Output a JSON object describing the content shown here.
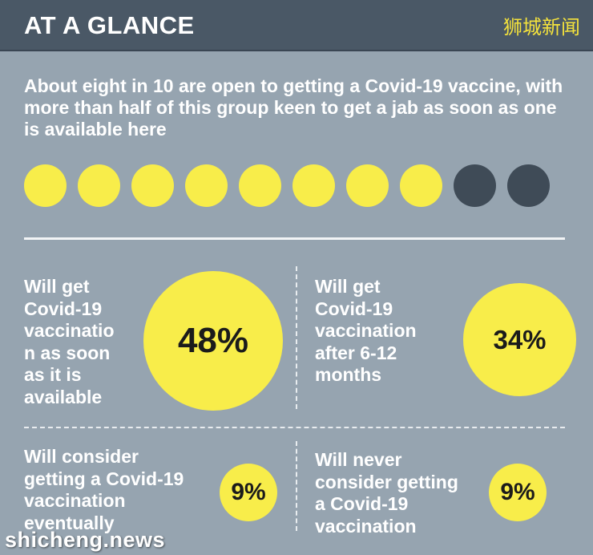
{
  "header": {
    "title": "AT A GLANCE",
    "brand": "狮城新闻"
  },
  "intro": "About eight in 10 are open to getting a Covid-19 vaccine, with more than half of this group keen to get a jab as soon as one is available here",
  "dots": {
    "total": 10,
    "filled": 8,
    "filled_color": "#f8ed4a",
    "empty_color": "#3f4b57"
  },
  "stats": [
    {
      "label_lines": [
        "Will get",
        "Covid-19",
        "vaccinatio",
        "n as soon",
        "as it is",
        "available"
      ],
      "value": "48%"
    },
    {
      "label_lines": [
        "Will get",
        "Covid-19",
        "vaccination",
        "after 6-12",
        "months"
      ],
      "value": "34%"
    },
    {
      "label_lines": [
        "Will consider",
        "getting a Covid-19",
        "vaccination",
        "eventually"
      ],
      "value": "9%"
    },
    {
      "label_lines": [
        "Will never",
        "consider getting",
        "a Covid-19",
        "vaccination"
      ],
      "value": "9%"
    }
  ],
  "watermark": "shicheng.news",
  "colors": {
    "background": "#96a4b0",
    "header": "#4a5866",
    "accent": "#f8ed4a",
    "brand": "#f4e23c"
  }
}
